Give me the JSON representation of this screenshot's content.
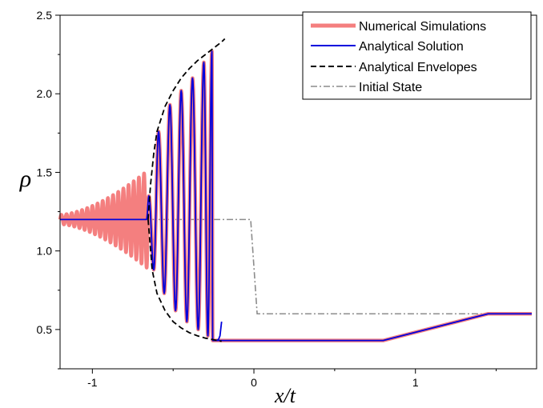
{
  "chart_data": {
    "type": "line",
    "title": "",
    "xlabel": "x/t",
    "ylabel": "ρ",
    "xlim": [
      -1.2,
      1.75
    ],
    "ylim": [
      0.25,
      2.5
    ],
    "xticks": [
      {
        "value": -1,
        "label": "-1"
      },
      {
        "value": 0,
        "label": "0"
      },
      {
        "value": 1,
        "label": "1"
      }
    ],
    "xticks_minor": [
      -0.5,
      0.5,
      1.5
    ],
    "yticks": [
      {
        "value": 0.5,
        "label": "0.5"
      },
      {
        "value": 1.0,
        "label": "1.0"
      },
      {
        "value": 1.5,
        "label": "1.5"
      },
      {
        "value": 2.0,
        "label": "2.0"
      },
      {
        "value": 2.5,
        "label": "2.5"
      }
    ],
    "grid": false,
    "legend_position": "top-right",
    "legend": [
      {
        "label": "Numerical Simulations",
        "color": "#f47f7f",
        "style": "thick-solid"
      },
      {
        "label": "Analytical Solution",
        "color": "#0000dd",
        "style": "solid"
      },
      {
        "label": "Analytical Envelopes",
        "color": "#000000",
        "style": "dashed"
      },
      {
        "label": "Initial State",
        "color": "#8c8c8c",
        "style": "dash-dot"
      }
    ],
    "series": [
      {
        "name": "Initial State",
        "x": [
          -1.2,
          -0.02,
          0.0,
          0.02,
          1.72
        ],
        "y": [
          1.2,
          1.2,
          0.9,
          0.6,
          0.6
        ]
      },
      {
        "name": "Analytical Envelopes",
        "upper": {
          "x": [
            -0.655,
            -0.64,
            -0.62,
            -0.6,
            -0.55,
            -0.5,
            -0.45,
            -0.4,
            -0.35,
            -0.3,
            -0.25,
            -0.2,
            -0.18
          ],
          "y": [
            1.2,
            1.42,
            1.62,
            1.76,
            1.92,
            2.02,
            2.1,
            2.16,
            2.21,
            2.25,
            2.29,
            2.33,
            2.35
          ]
        },
        "lower": {
          "x": [
            -0.655,
            -0.63,
            -0.6,
            -0.55,
            -0.5,
            -0.45,
            -0.4,
            -0.35,
            -0.3,
            -0.25,
            -0.2
          ],
          "y": [
            1.2,
            0.88,
            0.73,
            0.62,
            0.55,
            0.51,
            0.48,
            0.46,
            0.445,
            0.435,
            0.425
          ]
        }
      },
      {
        "name": "Analytical Solution",
        "x_start": -1.2,
        "x_uniform_end": -0.665,
        "base_value": 1.2,
        "peaks_x": [
          -0.65,
          -0.59,
          -0.52,
          -0.45,
          -0.38,
          -0.31,
          -0.26
        ],
        "peaks_y": [
          1.35,
          1.76,
          1.93,
          2.02,
          2.1,
          2.2,
          2.27
        ],
        "troughs_x": [
          -0.62,
          -0.555,
          -0.485,
          -0.415,
          -0.345,
          -0.285
        ],
        "troughs_y": [
          0.88,
          0.73,
          0.62,
          0.55,
          0.5,
          0.46
        ],
        "tail_x": [
          -0.22,
          -0.2
        ],
        "tail_y": [
          0.44,
          0.55
        ],
        "plateau": {
          "x": [
            -0.255,
            0.8
          ],
          "y": 0.43
        },
        "ramp": {
          "x": [
            0.8,
            1.45
          ],
          "y": [
            0.43,
            0.6
          ]
        },
        "right_state": {
          "x": [
            1.45,
            1.72
          ],
          "y": 0.6
        }
      },
      {
        "name": "Numerical Simulations",
        "x_start": -1.2,
        "x_end": -0.66,
        "center": 1.2,
        "amplitude_start": 0.03,
        "amplitude_end": 0.31,
        "wavelength": 0.032
      }
    ]
  }
}
